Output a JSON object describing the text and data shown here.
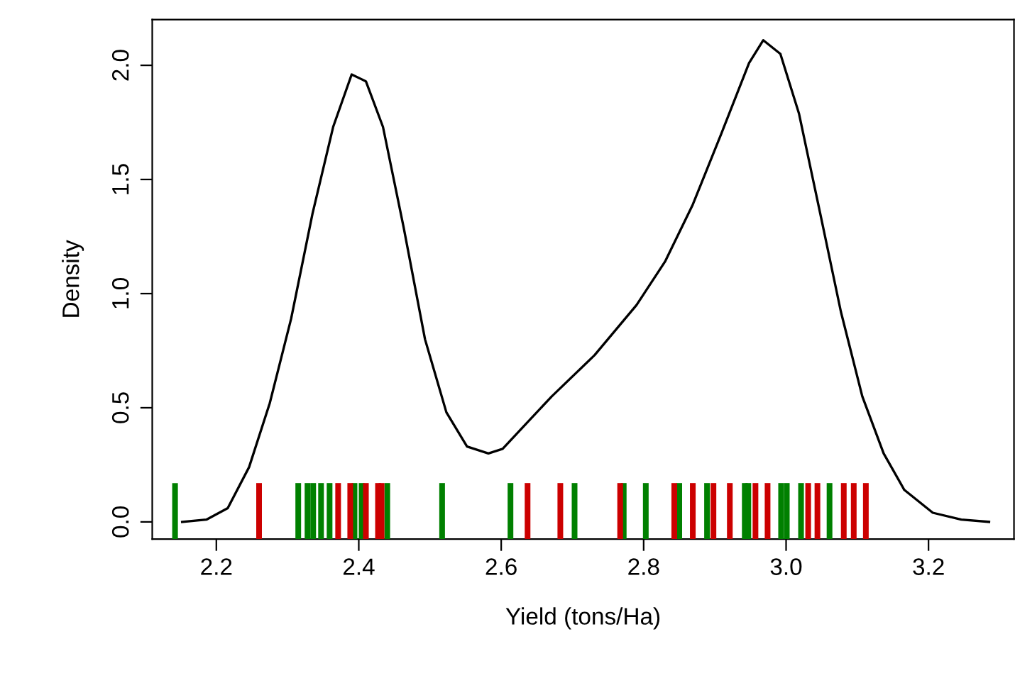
{
  "chart_data": {
    "type": "line",
    "xlabel": "Yield (tons/Ha)",
    "ylabel": "Density",
    "xlim": [
      2.11,
      3.32
    ],
    "ylim": [
      -0.075,
      2.2
    ],
    "xticks": [
      {
        "value": 2.2,
        "label": "2.2"
      },
      {
        "value": 2.4,
        "label": "2.4"
      },
      {
        "value": 2.6,
        "label": "2.6"
      },
      {
        "value": 2.8,
        "label": "2.8"
      },
      {
        "value": 3.0,
        "label": "3.0"
      },
      {
        "value": 3.2,
        "label": "3.2"
      }
    ],
    "yticks": [
      {
        "value": 0,
        "label": "0.0"
      },
      {
        "value": 0.5,
        "label": "0.5"
      },
      {
        "value": 1.0,
        "label": "1.0"
      },
      {
        "value": 1.5,
        "label": "1.5"
      },
      {
        "value": 2.0,
        "label": "2.0"
      }
    ],
    "grid": false,
    "series": [
      {
        "color": "#000000",
        "x": [
          2.152,
          2.186,
          2.216,
          2.246,
          2.275,
          2.305,
          2.335,
          2.364,
          2.39,
          2.41,
          2.434,
          2.463,
          2.493,
          2.523,
          2.552,
          2.582,
          2.602,
          2.632,
          2.671,
          2.731,
          2.79,
          2.83,
          2.869,
          2.909,
          2.948,
          2.968,
          2.992,
          3.018,
          3.048,
          3.077,
          3.107,
          3.137,
          3.166,
          3.206,
          3.246,
          3.285
        ],
        "values": [
          0.0,
          0.01,
          0.06,
          0.24,
          0.52,
          0.89,
          1.35,
          1.73,
          1.96,
          1.93,
          1.73,
          1.29,
          0.8,
          0.48,
          0.33,
          0.3,
          0.32,
          0.42,
          0.55,
          0.73,
          0.95,
          1.14,
          1.39,
          1.7,
          2.01,
          2.11,
          2.05,
          1.79,
          1.35,
          0.92,
          0.55,
          0.3,
          0.14,
          0.04,
          0.01,
          0.0
        ]
      },
      {
        "type": "bar",
        "color": "#008000",
        "x": [
          2.142,
          2.315,
          2.328,
          2.336,
          2.347,
          2.359,
          2.394,
          2.404,
          2.44,
          2.517,
          2.613,
          2.703,
          2.772,
          2.803,
          2.85,
          2.889,
          2.942,
          2.947,
          2.993,
          3.001,
          3.021,
          3.061
        ],
        "base": [
          -0.075,
          -0.075,
          -0.075,
          -0.075,
          -0.075,
          -0.075,
          -0.075,
          -0.075,
          -0.075,
          -0.075,
          -0.075,
          -0.075,
          -0.075,
          -0.075,
          -0.075,
          -0.075,
          -0.075,
          -0.075,
          -0.075,
          -0.075,
          -0.075,
          -0.075
        ],
        "values": [
          0.245,
          0.245,
          0.245,
          0.245,
          0.245,
          0.245,
          0.245,
          0.245,
          0.245,
          0.245,
          0.245,
          0.245,
          0.245,
          0.245,
          0.245,
          0.245,
          0.245,
          0.245,
          0.245,
          0.245,
          0.245,
          0.245
        ]
      },
      {
        "type": "bar",
        "color": "#cc0000",
        "x": [
          2.26,
          2.371,
          2.388,
          2.41,
          2.427,
          2.432,
          2.637,
          2.683,
          2.767,
          2.843,
          2.869,
          2.898,
          2.921,
          2.957,
          2.974,
          3.031,
          3.044,
          3.081,
          3.095,
          3.112
        ],
        "base": [
          -0.075,
          -0.075,
          -0.075,
          -0.075,
          -0.075,
          -0.075,
          -0.075,
          -0.075,
          -0.075,
          -0.075,
          -0.075,
          -0.075,
          -0.075,
          -0.075,
          -0.075,
          -0.075,
          -0.075,
          -0.075,
          -0.075,
          -0.075
        ],
        "values": [
          0.245,
          0.245,
          0.245,
          0.245,
          0.245,
          0.245,
          0.245,
          0.245,
          0.245,
          0.245,
          0.245,
          0.245,
          0.245,
          0.245,
          0.245,
          0.245,
          0.245,
          0.245,
          0.245,
          0.245
        ]
      }
    ]
  }
}
